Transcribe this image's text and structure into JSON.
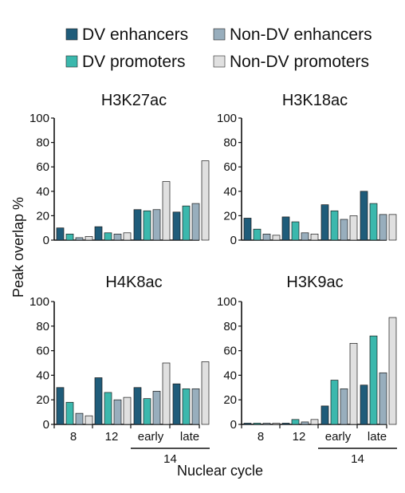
{
  "legend": [
    {
      "label": "DV enhancers",
      "color": "#1f5c7a"
    },
    {
      "label": "Non-DV enhancers",
      "color": "#98aebd"
    },
    {
      "label": "DV promoters",
      "color": "#3bb8ad"
    },
    {
      "label": "Non-DV promoters",
      "color": "#e0e0e0"
    }
  ],
  "ylabel": "Peak overlap %",
  "xlabel": "Nuclear cycle",
  "cycle_group_label": "14",
  "chart_data": [
    {
      "type": "bar",
      "title": "H3K27ac",
      "categories": [
        "8",
        "12",
        "early",
        "late"
      ],
      "ylim": [
        0,
        100
      ],
      "yticks": [
        0,
        20,
        40,
        60,
        80,
        100
      ],
      "series": [
        {
          "name": "DV enhancers",
          "values": [
            10,
            11,
            25,
            23
          ]
        },
        {
          "name": "DV promoters",
          "values": [
            5,
            6,
            24,
            28
          ]
        },
        {
          "name": "Non-DV enhancers",
          "values": [
            2,
            5,
            25,
            30
          ]
        },
        {
          "name": "Non-DV promoters",
          "values": [
            3,
            6,
            48,
            65
          ]
        }
      ]
    },
    {
      "type": "bar",
      "title": "H3K18ac",
      "categories": [
        "8",
        "12",
        "early",
        "late"
      ],
      "ylim": [
        0,
        100
      ],
      "yticks": [
        0,
        20,
        40,
        60,
        80,
        100
      ],
      "series": [
        {
          "name": "DV enhancers",
          "values": [
            18,
            19,
            29,
            40
          ]
        },
        {
          "name": "DV promoters",
          "values": [
            9,
            15,
            24,
            30
          ]
        },
        {
          "name": "Non-DV enhancers",
          "values": [
            5,
            6,
            17,
            21
          ]
        },
        {
          "name": "Non-DV promoters",
          "values": [
            4,
            5,
            20,
            21
          ]
        }
      ]
    },
    {
      "type": "bar",
      "title": "H4K8ac",
      "categories": [
        "8",
        "12",
        "early",
        "late"
      ],
      "ylim": [
        0,
        100
      ],
      "yticks": [
        0,
        20,
        40,
        60,
        80,
        100
      ],
      "series": [
        {
          "name": "DV enhancers",
          "values": [
            30,
            38,
            30,
            33
          ]
        },
        {
          "name": "DV promoters",
          "values": [
            18,
            26,
            21,
            29
          ]
        },
        {
          "name": "Non-DV enhancers",
          "values": [
            9,
            20,
            27,
            29
          ]
        },
        {
          "name": "Non-DV promoters",
          "values": [
            7,
            22,
            50,
            51
          ]
        }
      ]
    },
    {
      "type": "bar",
      "title": "H3K9ac",
      "categories": [
        "8",
        "12",
        "early",
        "late"
      ],
      "ylim": [
        0,
        100
      ],
      "yticks": [
        0,
        20,
        40,
        60,
        80,
        100
      ],
      "series": [
        {
          "name": "DV enhancers",
          "values": [
            1,
            1,
            15,
            32
          ]
        },
        {
          "name": "DV promoters",
          "values": [
            1,
            4,
            36,
            72
          ]
        },
        {
          "name": "Non-DV enhancers",
          "values": [
            1,
            2,
            29,
            42
          ]
        },
        {
          "name": "Non-DV promoters",
          "values": [
            1,
            4,
            66,
            87
          ]
        }
      ]
    }
  ]
}
